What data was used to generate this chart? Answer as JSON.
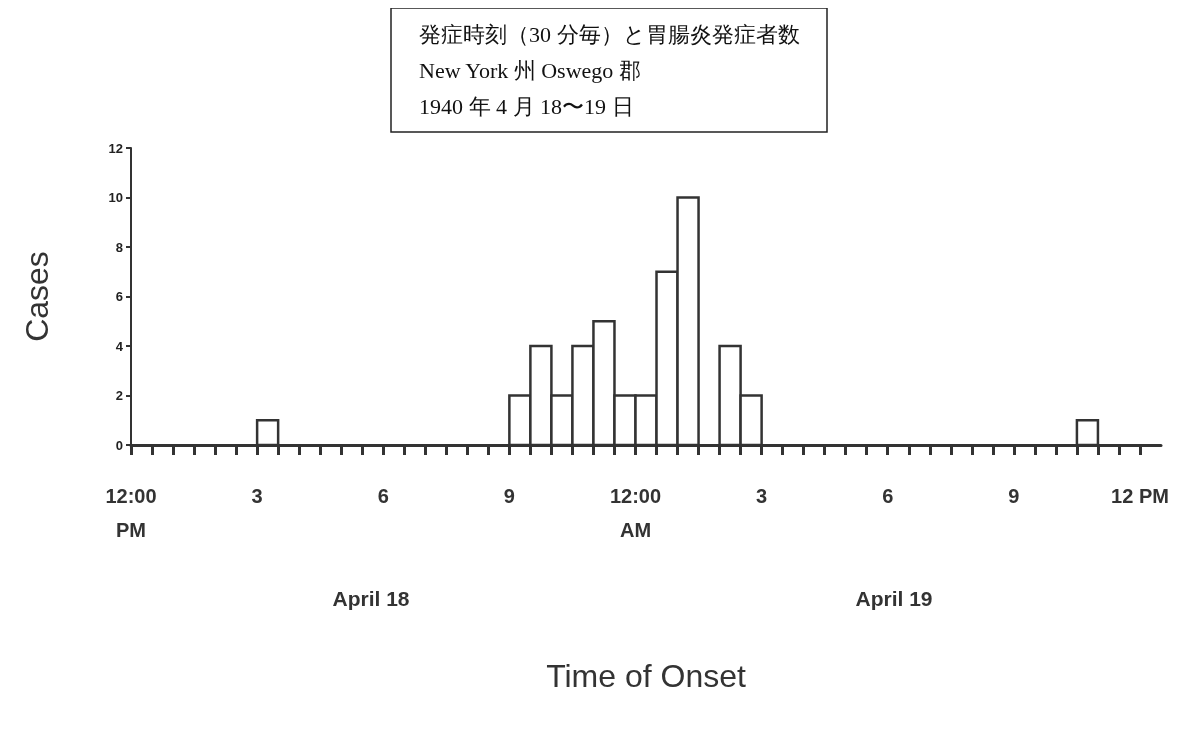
{
  "chart_data": {
    "type": "histogram",
    "title": "発症時刻（30 分毎）と胃腸炎発症者数\nNew York 州 Oswego 郡\n1940 年 4 月 18〜19 日",
    "xlabel": "Time of Onset",
    "ylabel": "Cases",
    "bins": [
      "1940-04-18T12:00",
      "1940-04-18T12:30",
      "1940-04-18T13:00",
      "1940-04-18T13:30",
      "1940-04-18T14:00",
      "1940-04-18T14:30",
      "1940-04-18T15:00",
      "1940-04-18T15:30",
      "1940-04-18T16:00",
      "1940-04-18T16:30",
      "1940-04-18T17:00",
      "1940-04-18T17:30",
      "1940-04-18T18:00",
      "1940-04-18T18:30",
      "1940-04-18T19:00",
      "1940-04-18T19:30",
      "1940-04-18T20:00",
      "1940-04-18T20:30",
      "1940-04-18T21:00",
      "1940-04-18T21:30",
      "1940-04-18T22:00",
      "1940-04-18T22:30",
      "1940-04-18T23:00",
      "1940-04-18T23:30",
      "1940-04-19T00:00",
      "1940-04-19T00:30",
      "1940-04-19T01:00",
      "1940-04-19T01:30",
      "1940-04-19T02:00",
      "1940-04-19T02:30",
      "1940-04-19T03:00",
      "1940-04-19T03:30",
      "1940-04-19T04:00",
      "1940-04-19T04:30",
      "1940-04-19T05:00",
      "1940-04-19T05:30",
      "1940-04-19T06:00",
      "1940-04-19T06:30",
      "1940-04-19T07:00",
      "1940-04-19T07:30",
      "1940-04-19T08:00",
      "1940-04-19T08:30",
      "1940-04-19T09:00",
      "1940-04-19T09:30",
      "1940-04-19T10:00",
      "1940-04-19T10:30",
      "1940-04-19T11:00",
      "1940-04-19T11:30",
      "1940-04-19T12:00"
    ],
    "values": [
      0,
      0,
      0,
      0,
      0,
      0,
      1,
      0,
      0,
      0,
      0,
      0,
      0,
      0,
      0,
      0,
      0,
      0,
      2,
      4,
      2,
      4,
      5,
      2,
      2,
      7,
      10,
      0,
      4,
      2,
      0,
      0,
      0,
      0,
      0,
      0,
      0,
      0,
      0,
      0,
      0,
      0,
      0,
      0,
      0,
      1,
      0,
      0
    ],
    "color": "#ffffff",
    "xlim": [
      "1940-04-18T12:00",
      "1940-04-19T12:30"
    ],
    "xticks": [
      {
        "value": "1940-04-18T12:00",
        "label": "12:00\nPM"
      },
      {
        "value": "1940-04-18T15:00",
        "label": "3"
      },
      {
        "value": "1940-04-18T18:00",
        "label": "6"
      },
      {
        "value": "1940-04-18T21:00",
        "label": "9"
      },
      {
        "value": "1940-04-19T00:00",
        "label": "12:00\nAM"
      },
      {
        "value": "1940-04-19T03:00",
        "label": "3"
      },
      {
        "value": "1940-04-19T06:00",
        "label": "6"
      },
      {
        "value": "1940-04-19T09:00",
        "label": "9"
      },
      {
        "value": "1940-04-19T12:00",
        "label": "12 PM"
      }
    ],
    "ylim": [
      0,
      12
    ],
    "yticks": [
      0,
      2,
      4,
      6,
      8,
      10,
      12
    ],
    "annotations": [
      "April 18",
      "April 19"
    ],
    "grid": false
  }
}
